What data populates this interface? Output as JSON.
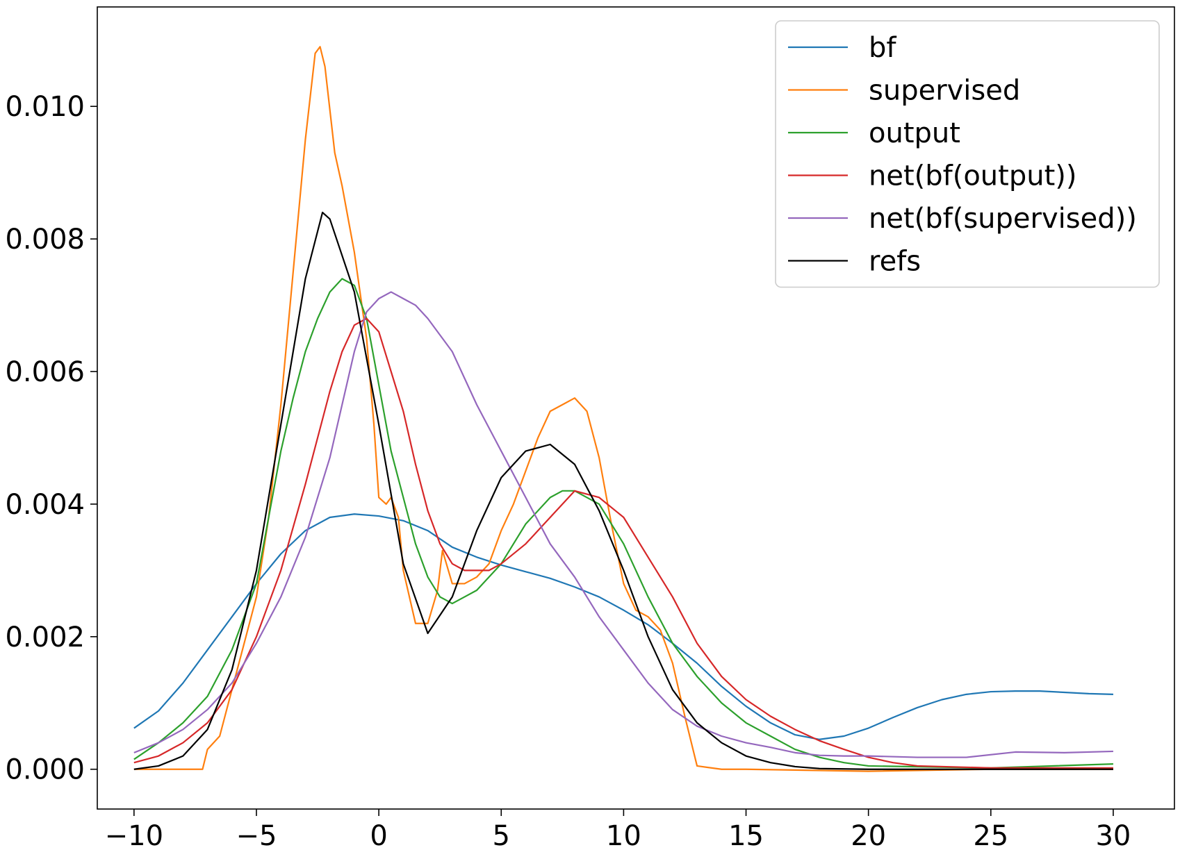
{
  "chart_data": {
    "type": "line",
    "title": "",
    "xlabel": "",
    "ylabel": "",
    "xlim": [
      -11.5,
      32.5
    ],
    "ylim": [
      -0.0006,
      0.0115
    ],
    "grid": false,
    "legend_position": "top-right",
    "x_ticks": [
      -10,
      -5,
      0,
      5,
      10,
      15,
      20,
      25,
      30
    ],
    "x_tick_labels": [
      "−10",
      "−5",
      "0",
      "5",
      "10",
      "15",
      "20",
      "25",
      "30"
    ],
    "y_ticks": [
      0.0,
      0.002,
      0.004,
      0.006,
      0.008,
      0.01
    ],
    "y_tick_labels": [
      "0.000",
      "0.002",
      "0.004",
      "0.006",
      "0.008",
      "0.010"
    ],
    "series": [
      {
        "name": "bf",
        "color": "#1f77b4",
        "points": [
          [
            -10,
            0.00062
          ],
          [
            -9,
            0.00088
          ],
          [
            -8,
            0.0013
          ],
          [
            -7,
            0.0018
          ],
          [
            -6,
            0.0023
          ],
          [
            -5,
            0.0028
          ],
          [
            -4,
            0.00325
          ],
          [
            -3,
            0.0036
          ],
          [
            -2,
            0.0038
          ],
          [
            -1,
            0.00385
          ],
          [
            0,
            0.00382
          ],
          [
            1,
            0.00375
          ],
          [
            2,
            0.0036
          ],
          [
            3,
            0.00335
          ],
          [
            4,
            0.0032
          ],
          [
            5,
            0.00308
          ],
          [
            6,
            0.00298
          ],
          [
            7,
            0.00288
          ],
          [
            8,
            0.00275
          ],
          [
            9,
            0.0026
          ],
          [
            10,
            0.0024
          ],
          [
            11,
            0.00218
          ],
          [
            12,
            0.0019
          ],
          [
            13,
            0.0016
          ],
          [
            14,
            0.00125
          ],
          [
            15,
            0.00095
          ],
          [
            16,
            0.0007
          ],
          [
            17,
            0.00052
          ],
          [
            18,
            0.00045
          ],
          [
            19,
            0.0005
          ],
          [
            20,
            0.00062
          ],
          [
            21,
            0.00078
          ],
          [
            22,
            0.00093
          ],
          [
            23,
            0.00105
          ],
          [
            24,
            0.00113
          ],
          [
            25,
            0.00117
          ],
          [
            26,
            0.00118
          ],
          [
            27,
            0.00118
          ],
          [
            28,
            0.00116
          ],
          [
            29,
            0.00114
          ],
          [
            30,
            0.00113
          ]
        ]
      },
      {
        "name": "supervised",
        "color": "#ff7f0e",
        "points": [
          [
            -10,
            0.0
          ],
          [
            -9,
            0.0
          ],
          [
            -8,
            0.0
          ],
          [
            -7.2,
            0.0
          ],
          [
            -7,
            0.0003
          ],
          [
            -6.5,
            0.0005
          ],
          [
            -6,
            0.0012
          ],
          [
            -5,
            0.0026
          ],
          [
            -4.5,
            0.0038
          ],
          [
            -4,
            0.0055
          ],
          [
            -3.5,
            0.0075
          ],
          [
            -3,
            0.0095
          ],
          [
            -2.6,
            0.0108
          ],
          [
            -2.4,
            0.0109
          ],
          [
            -2.2,
            0.0106
          ],
          [
            -1.8,
            0.0093
          ],
          [
            -1.5,
            0.0088
          ],
          [
            -1,
            0.0078
          ],
          [
            -0.5,
            0.0065
          ],
          [
            -0.2,
            0.0052
          ],
          [
            0,
            0.0041
          ],
          [
            0.3,
            0.004
          ],
          [
            0.5,
            0.0041
          ],
          [
            0.8,
            0.0038
          ],
          [
            1,
            0.003
          ],
          [
            1.5,
            0.0022
          ],
          [
            2,
            0.0022
          ],
          [
            2.4,
            0.0027
          ],
          [
            2.6,
            0.0033
          ],
          [
            3,
            0.0028
          ],
          [
            3.5,
            0.0028
          ],
          [
            4,
            0.0029
          ],
          [
            4.5,
            0.0031
          ],
          [
            5,
            0.0036
          ],
          [
            5.5,
            0.004
          ],
          [
            6,
            0.0045
          ],
          [
            6.5,
            0.005
          ],
          [
            7,
            0.0054
          ],
          [
            7.5,
            0.0055
          ],
          [
            8,
            0.0056
          ],
          [
            8.5,
            0.0054
          ],
          [
            9,
            0.0047
          ],
          [
            9.5,
            0.0037
          ],
          [
            10,
            0.0028
          ],
          [
            10.5,
            0.0024
          ],
          [
            11,
            0.0023
          ],
          [
            11.5,
            0.0021
          ],
          [
            12,
            0.0016
          ],
          [
            12.5,
            0.0008
          ],
          [
            13,
            5e-05
          ],
          [
            14,
            0.0
          ],
          [
            15,
            0.0
          ],
          [
            20,
            -3e-05
          ],
          [
            25,
            0.0
          ],
          [
            30,
            0.0
          ]
        ]
      },
      {
        "name": "output",
        "color": "#2ca02c",
        "points": [
          [
            -10,
            0.00015
          ],
          [
            -9,
            0.0004
          ],
          [
            -8,
            0.0007
          ],
          [
            -7,
            0.0011
          ],
          [
            -6,
            0.0018
          ],
          [
            -5,
            0.0028
          ],
          [
            -4.5,
            0.0038
          ],
          [
            -4,
            0.0048
          ],
          [
            -3.5,
            0.0056
          ],
          [
            -3,
            0.0063
          ],
          [
            -2.5,
            0.0068
          ],
          [
            -2,
            0.0072
          ],
          [
            -1.5,
            0.0074
          ],
          [
            -1,
            0.0073
          ],
          [
            -0.5,
            0.0068
          ],
          [
            0,
            0.0058
          ],
          [
            0.5,
            0.0048
          ],
          [
            1,
            0.0041
          ],
          [
            1.5,
            0.0034
          ],
          [
            2,
            0.0029
          ],
          [
            2.5,
            0.0026
          ],
          [
            3,
            0.0025
          ],
          [
            3.5,
            0.0026
          ],
          [
            4,
            0.0027
          ],
          [
            5,
            0.0031
          ],
          [
            6,
            0.0037
          ],
          [
            7,
            0.0041
          ],
          [
            7.5,
            0.0042
          ],
          [
            8,
            0.0042
          ],
          [
            9,
            0.004
          ],
          [
            10,
            0.0034
          ],
          [
            11,
            0.0026
          ],
          [
            12,
            0.0019
          ],
          [
            13,
            0.0014
          ],
          [
            14,
            0.001
          ],
          [
            15,
            0.0007
          ],
          [
            16,
            0.0005
          ],
          [
            17,
            0.0003
          ],
          [
            18,
            0.00018
          ],
          [
            19,
            0.0001
          ],
          [
            20,
            5e-05
          ],
          [
            25,
            2e-05
          ],
          [
            30,
            8e-05
          ]
        ]
      },
      {
        "name": "net(bf(output))",
        "color": "#d62728",
        "points": [
          [
            -10,
            0.0001
          ],
          [
            -9,
            0.0002
          ],
          [
            -8,
            0.0004
          ],
          [
            -7,
            0.0007
          ],
          [
            -6,
            0.0012
          ],
          [
            -5,
            0.002
          ],
          [
            -4,
            0.003
          ],
          [
            -3,
            0.0043
          ],
          [
            -2,
            0.0057
          ],
          [
            -1.5,
            0.0063
          ],
          [
            -1,
            0.0067
          ],
          [
            -0.5,
            0.0068
          ],
          [
            0,
            0.0066
          ],
          [
            0.5,
            0.006
          ],
          [
            1,
            0.0054
          ],
          [
            1.5,
            0.0046
          ],
          [
            2,
            0.0039
          ],
          [
            2.5,
            0.0034
          ],
          [
            3,
            0.0031
          ],
          [
            3.5,
            0.003
          ],
          [
            4,
            0.003
          ],
          [
            4.5,
            0.003
          ],
          [
            5,
            0.0031
          ],
          [
            6,
            0.0034
          ],
          [
            7,
            0.0038
          ],
          [
            8,
            0.0042
          ],
          [
            9,
            0.0041
          ],
          [
            10,
            0.0038
          ],
          [
            11,
            0.0032
          ],
          [
            12,
            0.0026
          ],
          [
            13,
            0.0019
          ],
          [
            14,
            0.0014
          ],
          [
            15,
            0.00105
          ],
          [
            16,
            0.0008
          ],
          [
            17,
            0.0006
          ],
          [
            18,
            0.00043
          ],
          [
            19,
            0.0003
          ],
          [
            20,
            0.00018
          ],
          [
            21,
            0.0001
          ],
          [
            22,
            5e-05
          ],
          [
            25,
            2e-05
          ],
          [
            30,
            2e-05
          ]
        ]
      },
      {
        "name": "net(bf(supervised))",
        "color": "#9467bd",
        "points": [
          [
            -10,
            0.00025
          ],
          [
            -9,
            0.0004
          ],
          [
            -8,
            0.0006
          ],
          [
            -7,
            0.0009
          ],
          [
            -6,
            0.0013
          ],
          [
            -5,
            0.0019
          ],
          [
            -4,
            0.0026
          ],
          [
            -3,
            0.0035
          ],
          [
            -2,
            0.0047
          ],
          [
            -1.5,
            0.0055
          ],
          [
            -1,
            0.0063
          ],
          [
            -0.5,
            0.0069
          ],
          [
            0,
            0.0071
          ],
          [
            0.5,
            0.0072
          ],
          [
            1,
            0.0071
          ],
          [
            1.5,
            0.007
          ],
          [
            2,
            0.0068
          ],
          [
            3,
            0.0063
          ],
          [
            4,
            0.0055
          ],
          [
            5,
            0.0048
          ],
          [
            6,
            0.0041
          ],
          [
            7,
            0.0034
          ],
          [
            8,
            0.0029
          ],
          [
            9,
            0.0023
          ],
          [
            10,
            0.0018
          ],
          [
            11,
            0.0013
          ],
          [
            12,
            0.0009
          ],
          [
            13,
            0.00065
          ],
          [
            14,
            0.0005
          ],
          [
            15,
            0.0004
          ],
          [
            16,
            0.00033
          ],
          [
            17,
            0.00025
          ],
          [
            18,
            0.00021
          ],
          [
            19,
            0.0002
          ],
          [
            20,
            0.0002
          ],
          [
            22,
            0.00018
          ],
          [
            24,
            0.00018
          ],
          [
            26,
            0.00026
          ],
          [
            28,
            0.00025
          ],
          [
            30,
            0.00027
          ]
        ]
      },
      {
        "name": "refs",
        "color": "#000000",
        "points": [
          [
            -10,
            0.0
          ],
          [
            -9,
            5e-05
          ],
          [
            -8,
            0.0002
          ],
          [
            -7,
            0.0006
          ],
          [
            -6,
            0.0015
          ],
          [
            -5,
            0.003
          ],
          [
            -4,
            0.0052
          ],
          [
            -3,
            0.0074
          ],
          [
            -2.3,
            0.0084
          ],
          [
            -2,
            0.0083
          ],
          [
            -1,
            0.0072
          ],
          [
            0,
            0.0052
          ],
          [
            1,
            0.0031
          ],
          [
            2,
            0.00205
          ],
          [
            3,
            0.0026
          ],
          [
            4,
            0.0036
          ],
          [
            5,
            0.0044
          ],
          [
            6,
            0.0048
          ],
          [
            7,
            0.0049
          ],
          [
            8,
            0.0046
          ],
          [
            9,
            0.0039
          ],
          [
            10,
            0.003
          ],
          [
            11,
            0.002
          ],
          [
            12,
            0.0012
          ],
          [
            13,
            0.0007
          ],
          [
            14,
            0.0004
          ],
          [
            15,
            0.0002
          ],
          [
            16,
            0.0001
          ],
          [
            17,
            4e-05
          ],
          [
            18,
            1e-05
          ],
          [
            20,
            0.0
          ],
          [
            25,
            0.0
          ],
          [
            30,
            0.0
          ]
        ]
      }
    ]
  }
}
